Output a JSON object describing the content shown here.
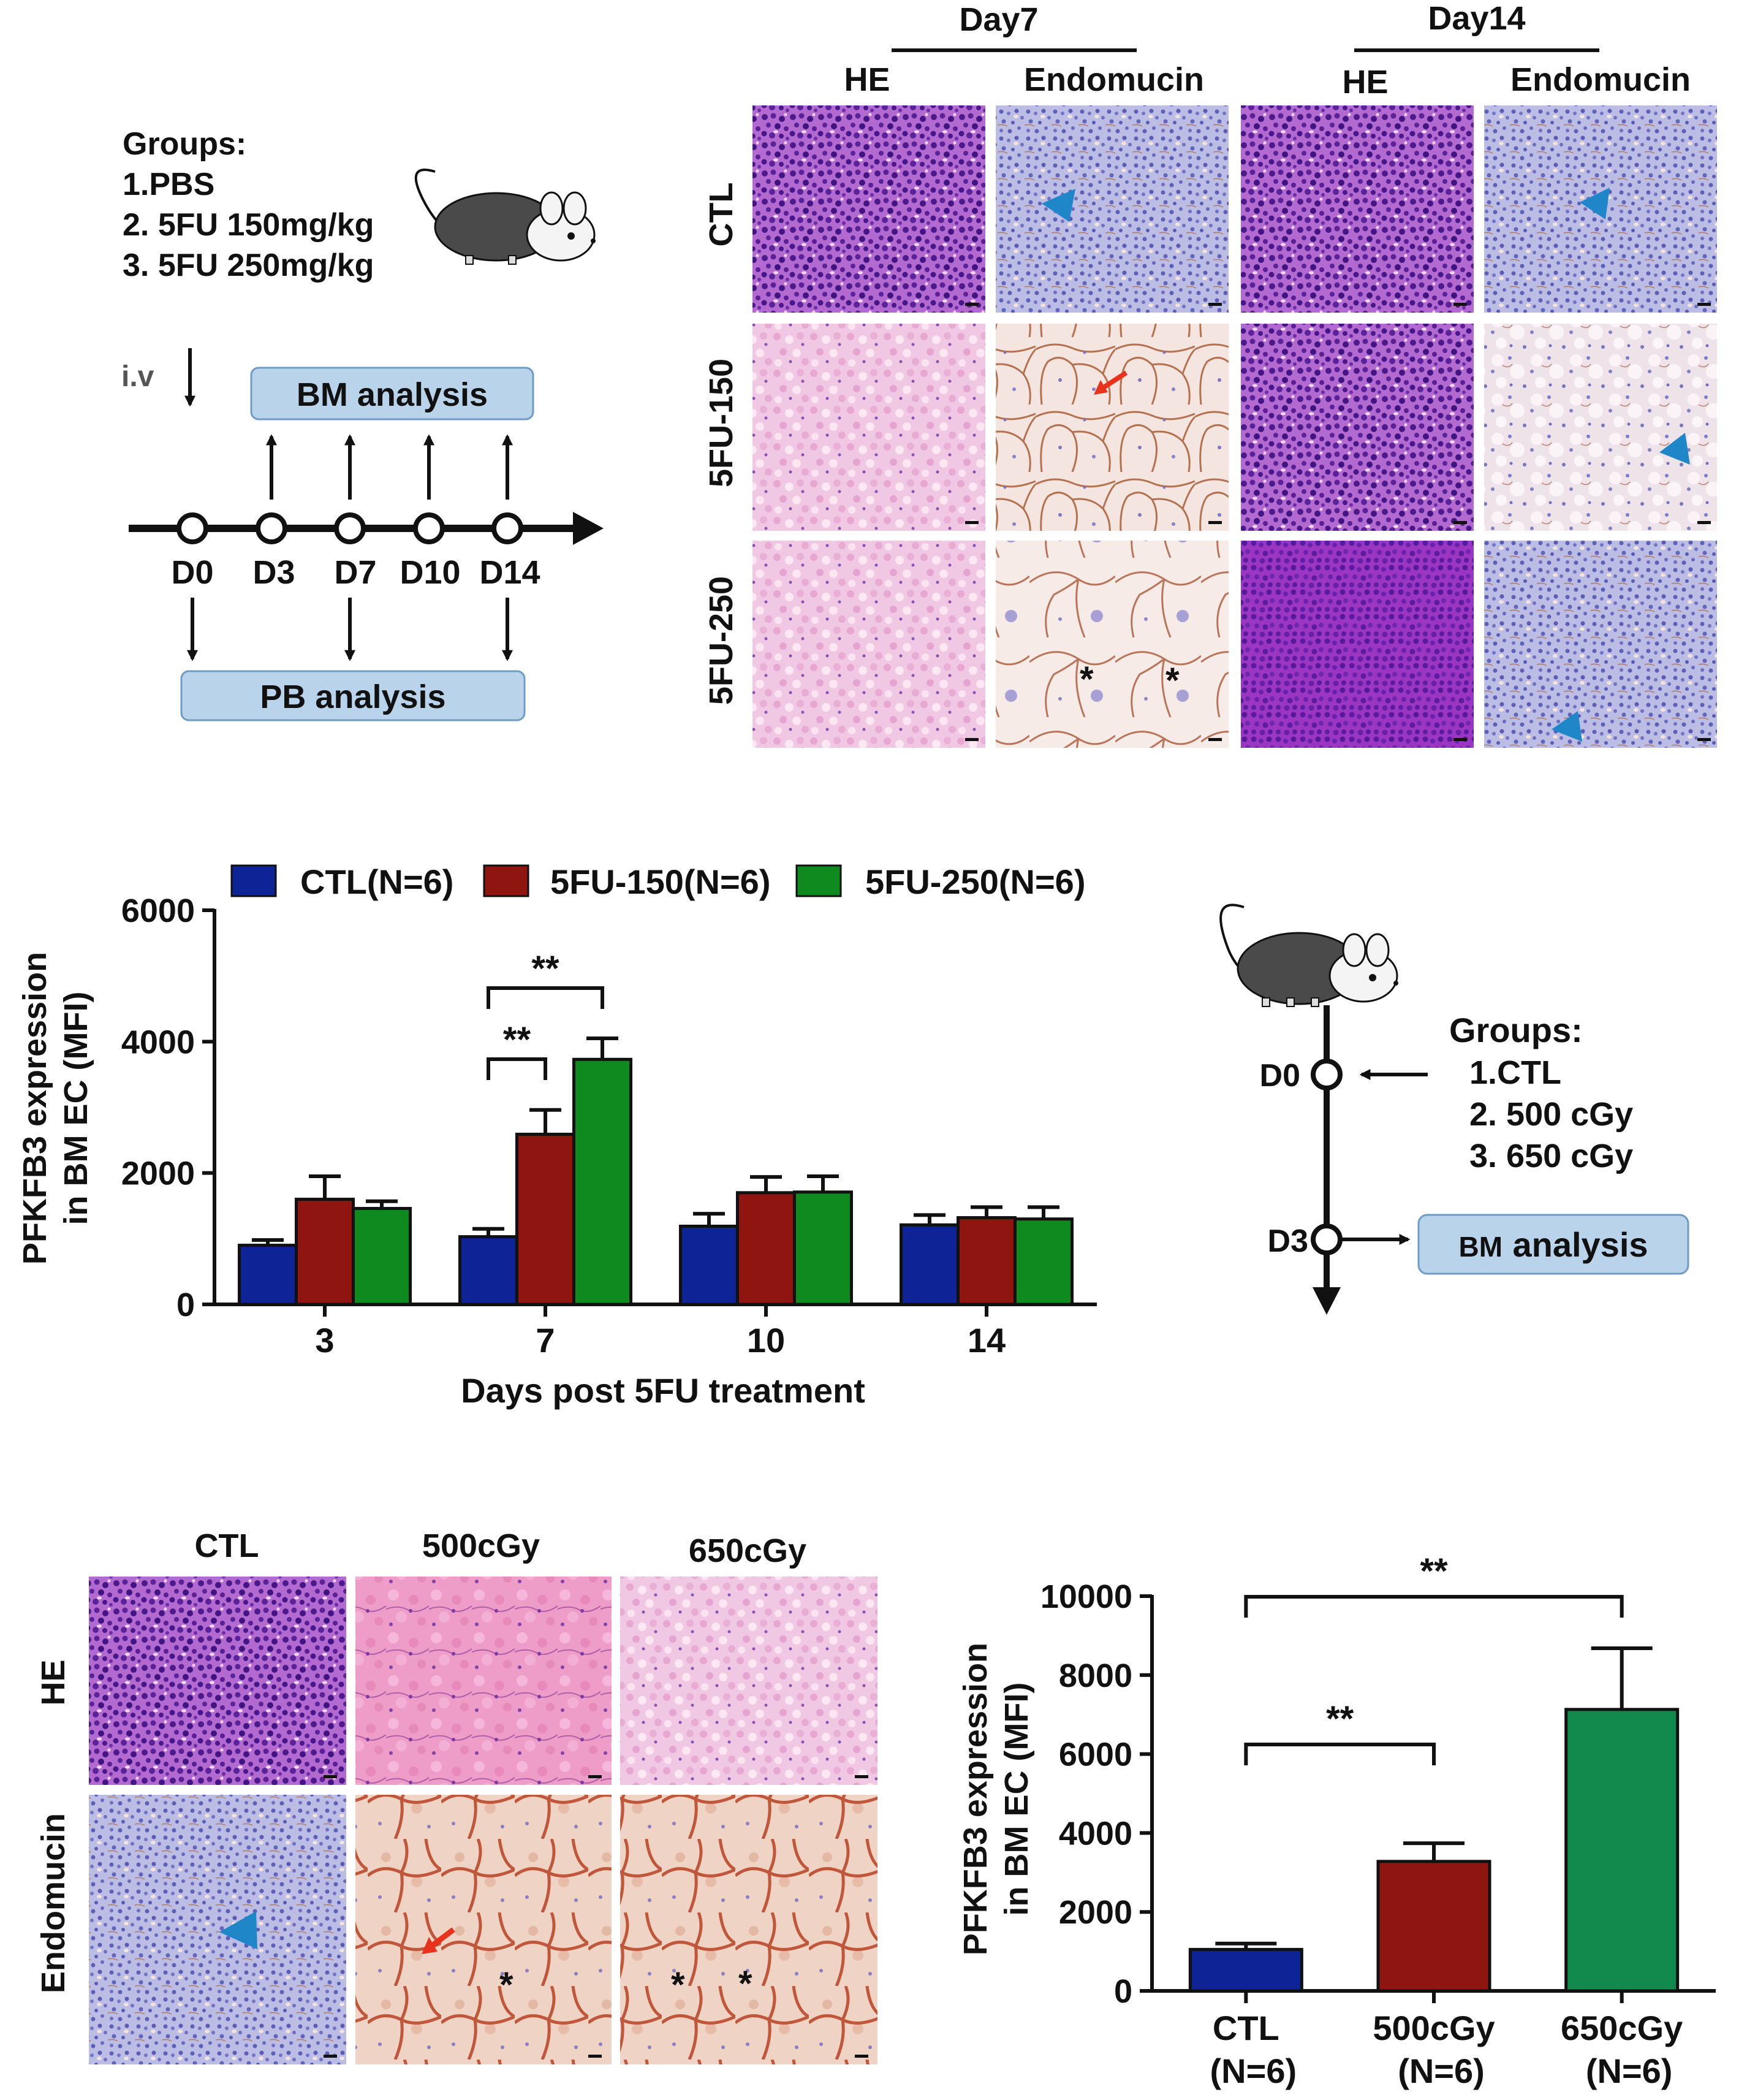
{
  "colors": {
    "ctl": "#0e2496",
    "fu150": "#8e1510",
    "fu250": "#0f8a1f",
    "gy500": "#8e1510",
    "gy650": "#128a4d",
    "box_fill": "#b9d3ea",
    "box_stroke": "#6f9cc6",
    "he_purple": "#6d2fa8",
    "he_pink": "#ecb8d8",
    "endo_blue": "#8a8fcf",
    "endo_pink": "#f1ddd4",
    "arrowhead_blue": "#1f86c8",
    "arrow_red": "#e8321c"
  },
  "schemeA": {
    "groups_title": "Groups:",
    "groups": [
      "1.PBS",
      "2. 5FU 150mg/kg",
      "3. 5FU 250mg/kg"
    ],
    "iv_label": "i.v",
    "bm_box": "BM analysis",
    "pb_box": "PB analysis",
    "days": [
      "D0",
      "D3",
      "D7",
      "D10",
      "D14"
    ],
    "mouse_icon": "mouse-icon"
  },
  "histoA": {
    "day_headers": [
      "Day7",
      "Day14"
    ],
    "column_headers": [
      "HE",
      "Endomucin",
      "HE",
      "Endomucin"
    ],
    "row_labels": [
      "CTL",
      "5FU-150",
      "5FU-250"
    ],
    "asterisk": "*"
  },
  "chart_data": [
    {
      "type": "bar",
      "title": "",
      "xlabel": "Days post 5FU treatment",
      "ylabel": "PFKFB3 expression\nin BM EC  (MFI)",
      "ylabel_lines": [
        "PFKFB3 expression",
        "in BM EC  (MFI)"
      ],
      "categories": [
        "3",
        "7",
        "10",
        "14"
      ],
      "ylim": [
        0,
        6000
      ],
      "yticks": [
        0,
        2000,
        4000,
        6000
      ],
      "ytick_labels": [
        "0",
        "2000",
        "4000",
        "6000"
      ],
      "legend": [
        "CTL(N=6)",
        "5FU-150(N=6)",
        "5FU-250(N=6)"
      ],
      "legend_position": "top",
      "series": [
        {
          "name": "CTL(N=6)",
          "values": [
            900,
            1030,
            1190,
            1210
          ],
          "errors": [
            80,
            120,
            190,
            150
          ]
        },
        {
          "name": "5FU-150(N=6)",
          "values": [
            1600,
            2590,
            1700,
            1320
          ],
          "errors": [
            350,
            370,
            240,
            160
          ]
        },
        {
          "name": "5FU-250(N=6)",
          "values": [
            1460,
            3730,
            1710,
            1300
          ],
          "errors": [
            110,
            320,
            240,
            180
          ]
        }
      ],
      "significance": [
        {
          "category": "7",
          "from_series": 0,
          "to_series": 2,
          "label": "**"
        },
        {
          "category": "7",
          "from_series": 0,
          "to_series": 1,
          "label": "**"
        }
      ]
    },
    {
      "type": "bar",
      "title": "",
      "xlabel": "",
      "ylabel": "PFKFB3 expression\nin BM EC  (MFI)",
      "ylabel_lines": [
        "PFKFB3 expression",
        "in BM EC  (MFI)"
      ],
      "categories": [
        "CTL\n(N=6)",
        "500cGy\n(N=6)",
        "650cGy\n(N=6)"
      ],
      "category_lines": [
        [
          "CTL",
          "(N=6)"
        ],
        [
          "500cGy",
          "(N=6)"
        ],
        [
          "650cGy",
          "(N=6)"
        ]
      ],
      "ylim": [
        0,
        10000
      ],
      "yticks": [
        0,
        2000,
        4000,
        6000,
        8000,
        10000
      ],
      "ytick_labels": [
        "0",
        "2000",
        "4000",
        "6000",
        "8000",
        "10000"
      ],
      "values": [
        1050,
        3280,
        7130
      ],
      "errors": [
        150,
        460,
        1550
      ],
      "significance": [
        {
          "from": 0,
          "to": 2,
          "label": "**"
        },
        {
          "from": 0,
          "to": 1,
          "label": "**"
        }
      ]
    }
  ],
  "schemeB": {
    "groups_title": "Groups:",
    "groups": [
      "1.CTL",
      "2. 500 cGy",
      "3. 650 cGy"
    ],
    "days": [
      "D0",
      "D3"
    ],
    "bm_box_prefix": "BM",
    "bm_box_suffix": "analysis",
    "mouse_icon": "mouse-icon"
  },
  "histoB": {
    "column_headers": [
      "CTL",
      "500cGy",
      "650cGy"
    ],
    "row_labels": [
      "HE",
      "Endomucin"
    ],
    "asterisk": "*"
  }
}
